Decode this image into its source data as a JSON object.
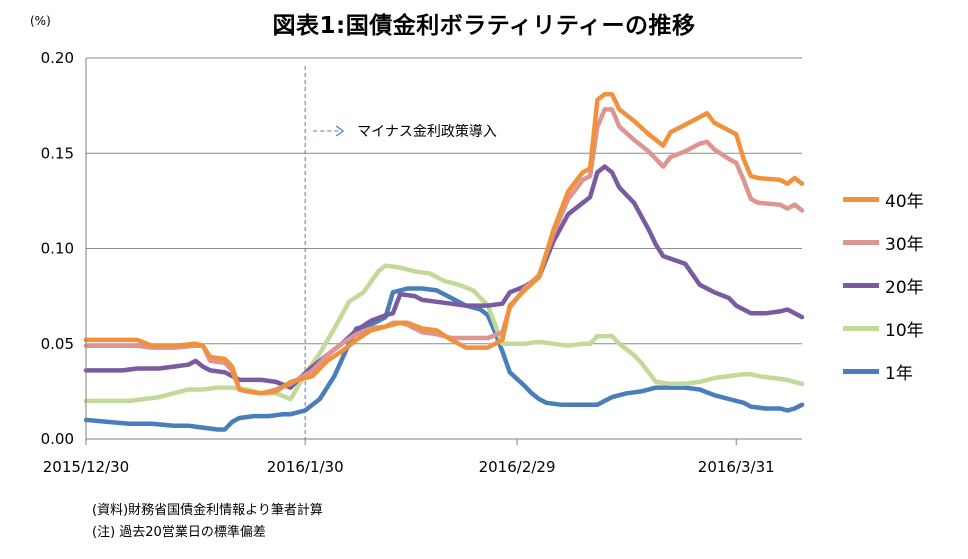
{
  "title": "図表1:国債金利ボラティリティーの推移",
  "chart_data": {
    "type": "line",
    "unit": "(%)",
    "ylim": [
      0,
      0.2
    ],
    "y_ticks": [
      "0.00",
      "0.05",
      "0.10",
      "0.15",
      "0.20"
    ],
    "x_ticks": [
      "2015/12/30",
      "2016/1/30",
      "2016/2/29",
      "2016/3/31"
    ],
    "grid": true,
    "legend_position": "right",
    "annotation": "マイナス金利政策導入",
    "series": [
      {
        "name": "40年",
        "color": "#F0923C",
        "points": [
          [
            0,
            0.052
          ],
          [
            7,
            0.052
          ],
          [
            9,
            0.049
          ],
          [
            12,
            0.049
          ],
          [
            15,
            0.05
          ],
          [
            16,
            0.049
          ],
          [
            17,
            0.043
          ],
          [
            19,
            0.042
          ],
          [
            20,
            0.038
          ],
          [
            21,
            0.026
          ],
          [
            22,
            0.025
          ],
          [
            24,
            0.024
          ],
          [
            26,
            0.025
          ],
          [
            28,
            0.03
          ],
          [
            31,
            0.033
          ],
          [
            33,
            0.041
          ],
          [
            35,
            0.046
          ],
          [
            37,
            0.052
          ],
          [
            39,
            0.057
          ],
          [
            41,
            0.059
          ],
          [
            42,
            0.06
          ],
          [
            43,
            0.061
          ],
          [
            44,
            0.061
          ],
          [
            46,
            0.058
          ],
          [
            48,
            0.057
          ],
          [
            50,
            0.052
          ],
          [
            52,
            0.048
          ],
          [
            55,
            0.048
          ],
          [
            57,
            0.052
          ],
          [
            58,
            0.07
          ],
          [
            60,
            0.078
          ],
          [
            62,
            0.085
          ],
          [
            64,
            0.11
          ],
          [
            66,
            0.13
          ],
          [
            68,
            0.14
          ],
          [
            69,
            0.142
          ],
          [
            70,
            0.178
          ],
          [
            71,
            0.181
          ],
          [
            72,
            0.181
          ],
          [
            73,
            0.173
          ],
          [
            75,
            0.167
          ],
          [
            77,
            0.16
          ],
          [
            79,
            0.154
          ],
          [
            80,
            0.161
          ],
          [
            82,
            0.165
          ],
          [
            84,
            0.169
          ],
          [
            85,
            0.171
          ],
          [
            86,
            0.166
          ],
          [
            88,
            0.162
          ],
          [
            89,
            0.16
          ],
          [
            90,
            0.147
          ],
          [
            91,
            0.138
          ],
          [
            92,
            0.137
          ],
          [
            95,
            0.136
          ],
          [
            96,
            0.134
          ],
          [
            97,
            0.137
          ],
          [
            98,
            0.134
          ]
        ]
      },
      {
        "name": "30年",
        "color": "#DC9590",
        "points": [
          [
            0,
            0.049
          ],
          [
            7,
            0.049
          ],
          [
            9,
            0.048
          ],
          [
            12,
            0.048
          ],
          [
            15,
            0.049
          ],
          [
            16,
            0.049
          ],
          [
            17,
            0.041
          ],
          [
            19,
            0.04
          ],
          [
            20,
            0.036
          ],
          [
            21,
            0.026
          ],
          [
            22,
            0.025
          ],
          [
            24,
            0.024
          ],
          [
            26,
            0.026
          ],
          [
            28,
            0.029
          ],
          [
            31,
            0.036
          ],
          [
            33,
            0.044
          ],
          [
            35,
            0.05
          ],
          [
            37,
            0.055
          ],
          [
            39,
            0.058
          ],
          [
            41,
            0.059
          ],
          [
            42,
            0.061
          ],
          [
            43,
            0.061
          ],
          [
            44,
            0.06
          ],
          [
            46,
            0.056
          ],
          [
            48,
            0.055
          ],
          [
            50,
            0.053
          ],
          [
            52,
            0.053
          ],
          [
            55,
            0.053
          ],
          [
            57,
            0.056
          ],
          [
            58,
            0.069
          ],
          [
            60,
            0.079
          ],
          [
            62,
            0.086
          ],
          [
            64,
            0.108
          ],
          [
            66,
            0.126
          ],
          [
            68,
            0.136
          ],
          [
            69,
            0.138
          ],
          [
            70,
            0.164
          ],
          [
            71,
            0.173
          ],
          [
            72,
            0.173
          ],
          [
            73,
            0.164
          ],
          [
            75,
            0.157
          ],
          [
            77,
            0.151
          ],
          [
            79,
            0.143
          ],
          [
            80,
            0.148
          ],
          [
            82,
            0.151
          ],
          [
            84,
            0.155
          ],
          [
            85,
            0.156
          ],
          [
            86,
            0.152
          ],
          [
            88,
            0.147
          ],
          [
            89,
            0.145
          ],
          [
            90,
            0.136
          ],
          [
            91,
            0.126
          ],
          [
            92,
            0.124
          ],
          [
            95,
            0.123
          ],
          [
            96,
            0.121
          ],
          [
            97,
            0.123
          ],
          [
            98,
            0.12
          ]
        ]
      },
      {
        "name": "20年",
        "color": "#7A5BA0",
        "points": [
          [
            0,
            0.036
          ],
          [
            3,
            0.036
          ],
          [
            5,
            0.036
          ],
          [
            7,
            0.037
          ],
          [
            10,
            0.037
          ],
          [
            12,
            0.038
          ],
          [
            14,
            0.039
          ],
          [
            15,
            0.041
          ],
          [
            16,
            0.038
          ],
          [
            17,
            0.036
          ],
          [
            19,
            0.035
          ],
          [
            21,
            0.031
          ],
          [
            24,
            0.031
          ],
          [
            26,
            0.03
          ],
          [
            28,
            0.027
          ],
          [
            29,
            0.031
          ],
          [
            31,
            0.038
          ],
          [
            33,
            0.044
          ],
          [
            35,
            0.05
          ],
          [
            37,
            0.057
          ],
          [
            39,
            0.062
          ],
          [
            41,
            0.065
          ],
          [
            42,
            0.066
          ],
          [
            43,
            0.076
          ],
          [
            45,
            0.075
          ],
          [
            46,
            0.073
          ],
          [
            48,
            0.072
          ],
          [
            50,
            0.071
          ],
          [
            52,
            0.07
          ],
          [
            55,
            0.07
          ],
          [
            57,
            0.071
          ],
          [
            58,
            0.077
          ],
          [
            60,
            0.08
          ],
          [
            62,
            0.085
          ],
          [
            64,
            0.104
          ],
          [
            66,
            0.118
          ],
          [
            68,
            0.124
          ],
          [
            69,
            0.127
          ],
          [
            70,
            0.14
          ],
          [
            71,
            0.143
          ],
          [
            72,
            0.14
          ],
          [
            73,
            0.132
          ],
          [
            75,
            0.124
          ],
          [
            77,
            0.11
          ],
          [
            78,
            0.102
          ],
          [
            79,
            0.096
          ],
          [
            82,
            0.092
          ],
          [
            84,
            0.081
          ],
          [
            86,
            0.077
          ],
          [
            88,
            0.074
          ],
          [
            89,
            0.07
          ],
          [
            90,
            0.068
          ],
          [
            91,
            0.066
          ],
          [
            93,
            0.066
          ],
          [
            95,
            0.067
          ],
          [
            96,
            0.068
          ],
          [
            97,
            0.066
          ],
          [
            98,
            0.064
          ]
        ]
      },
      {
        "name": "10年",
        "color": "#C3D99A",
        "points": [
          [
            0,
            0.02
          ],
          [
            4,
            0.02
          ],
          [
            6,
            0.02
          ],
          [
            8,
            0.021
          ],
          [
            10,
            0.022
          ],
          [
            12,
            0.024
          ],
          [
            14,
            0.026
          ],
          [
            16,
            0.026
          ],
          [
            18,
            0.027
          ],
          [
            20,
            0.027
          ],
          [
            22,
            0.026
          ],
          [
            24,
            0.024
          ],
          [
            26,
            0.024
          ],
          [
            28,
            0.021
          ],
          [
            30,
            0.034
          ],
          [
            32,
            0.045
          ],
          [
            34,
            0.058
          ],
          [
            36,
            0.072
          ],
          [
            38,
            0.077
          ],
          [
            40,
            0.088
          ],
          [
            41,
            0.091
          ],
          [
            43,
            0.09
          ],
          [
            45,
            0.088
          ],
          [
            47,
            0.087
          ],
          [
            49,
            0.083
          ],
          [
            51,
            0.081
          ],
          [
            53,
            0.078
          ],
          [
            55,
            0.07
          ],
          [
            56,
            0.06
          ],
          [
            57,
            0.05
          ],
          [
            58,
            0.05
          ],
          [
            60,
            0.05
          ],
          [
            62,
            0.051
          ],
          [
            64,
            0.05
          ],
          [
            66,
            0.049
          ],
          [
            68,
            0.05
          ],
          [
            69,
            0.05
          ],
          [
            70,
            0.054
          ],
          [
            72,
            0.054
          ],
          [
            73,
            0.05
          ],
          [
            75,
            0.044
          ],
          [
            76,
            0.04
          ],
          [
            78,
            0.03
          ],
          [
            80,
            0.029
          ],
          [
            82,
            0.029
          ],
          [
            84,
            0.03
          ],
          [
            86,
            0.032
          ],
          [
            88,
            0.033
          ],
          [
            90,
            0.034
          ],
          [
            91,
            0.034
          ],
          [
            92,
            0.033
          ],
          [
            94,
            0.032
          ],
          [
            96,
            0.031
          ],
          [
            97,
            0.03
          ],
          [
            98,
            0.029
          ]
        ]
      },
      {
        "name": "1年",
        "color": "#4A7EBB",
        "points": [
          [
            0,
            0.01
          ],
          [
            3,
            0.009
          ],
          [
            6,
            0.008
          ],
          [
            9,
            0.008
          ],
          [
            12,
            0.007
          ],
          [
            14,
            0.007
          ],
          [
            16,
            0.006
          ],
          [
            18,
            0.005
          ],
          [
            19,
            0.005
          ],
          [
            20,
            0.009
          ],
          [
            21,
            0.011
          ],
          [
            23,
            0.012
          ],
          [
            25,
            0.012
          ],
          [
            27,
            0.013
          ],
          [
            28,
            0.013
          ],
          [
            30,
            0.015
          ],
          [
            32,
            0.021
          ],
          [
            34,
            0.033
          ],
          [
            36,
            0.05
          ],
          [
            37,
            0.058
          ],
          [
            39,
            0.06
          ],
          [
            41,
            0.064
          ],
          [
            42,
            0.077
          ],
          [
            44,
            0.079
          ],
          [
            46,
            0.079
          ],
          [
            48,
            0.078
          ],
          [
            50,
            0.074
          ],
          [
            52,
            0.07
          ],
          [
            54,
            0.068
          ],
          [
            55,
            0.065
          ],
          [
            56,
            0.056
          ],
          [
            57,
            0.046
          ],
          [
            58,
            0.035
          ],
          [
            60,
            0.028
          ],
          [
            61,
            0.024
          ],
          [
            62,
            0.021
          ],
          [
            63,
            0.019
          ],
          [
            65,
            0.018
          ],
          [
            67,
            0.018
          ],
          [
            69,
            0.018
          ],
          [
            70,
            0.018
          ],
          [
            71,
            0.02
          ],
          [
            72,
            0.022
          ],
          [
            74,
            0.024
          ],
          [
            76,
            0.025
          ],
          [
            78,
            0.027
          ],
          [
            80,
            0.027
          ],
          [
            82,
            0.027
          ],
          [
            84,
            0.026
          ],
          [
            86,
            0.023
          ],
          [
            88,
            0.021
          ],
          [
            90,
            0.019
          ],
          [
            91,
            0.017
          ],
          [
            93,
            0.016
          ],
          [
            95,
            0.016
          ],
          [
            96,
            0.015
          ],
          [
            97,
            0.016
          ],
          [
            98,
            0.018
          ]
        ]
      }
    ]
  },
  "notes": [
    "(資料)財務省国債金利情報より筆者計算",
    "(注) 過去20営業日の標準偏差"
  ]
}
